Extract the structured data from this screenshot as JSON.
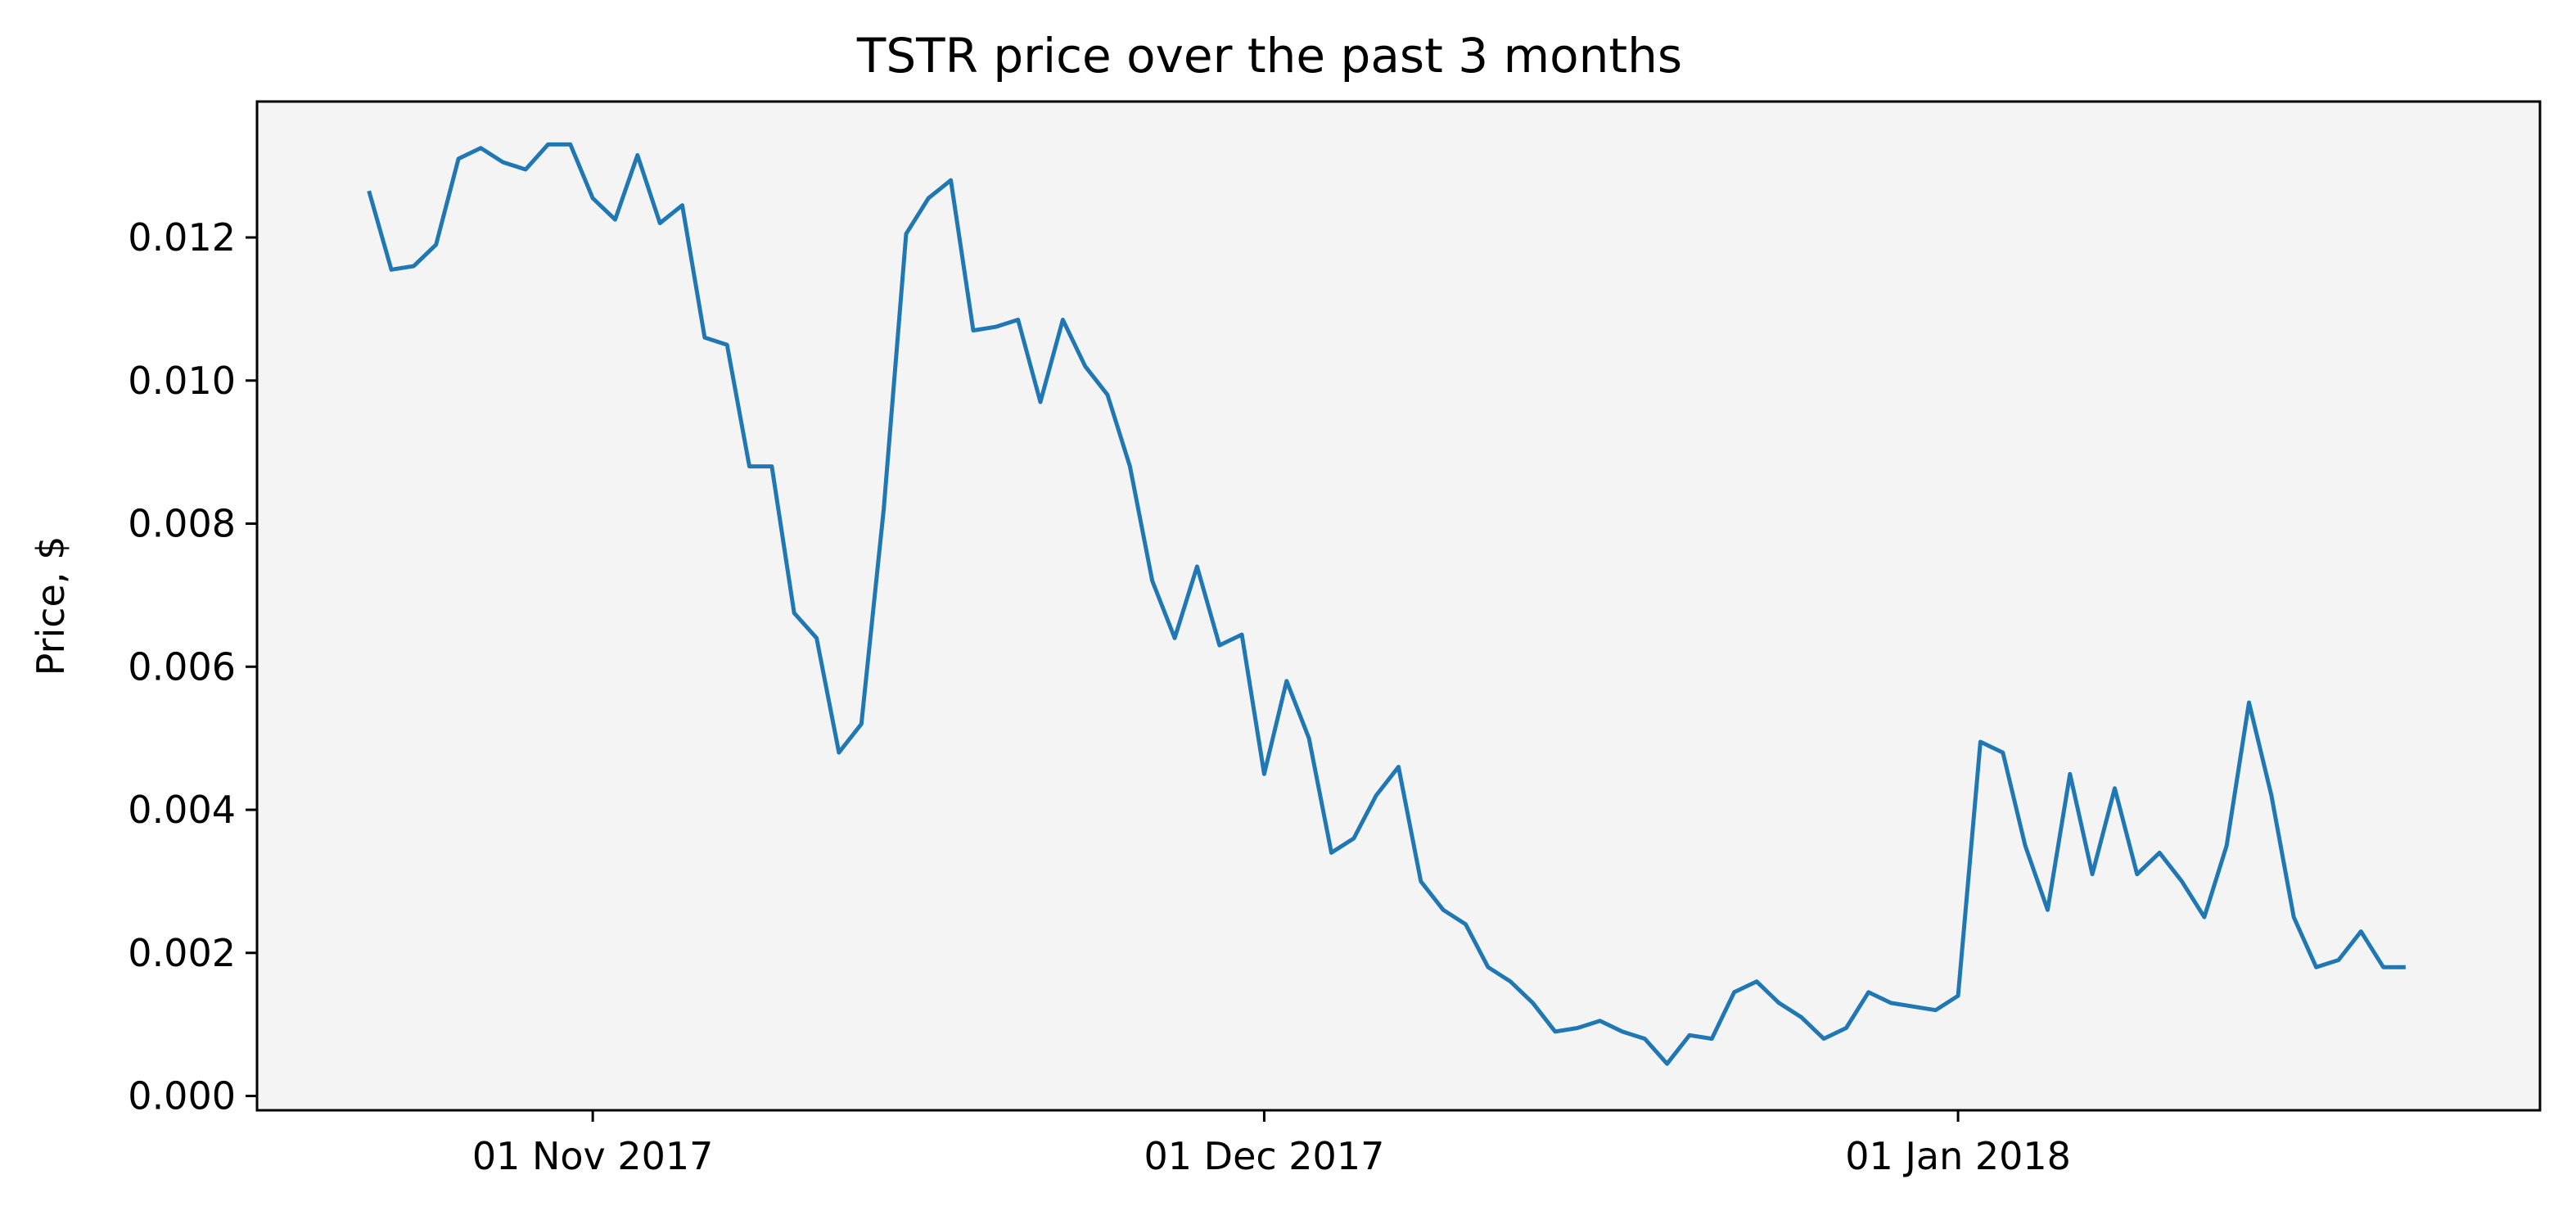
{
  "chart_data": {
    "type": "line",
    "title": "TSTR price over the past 3 months",
    "xlabel": "",
    "ylabel": "Price, $",
    "ylim": [
      -0.0002,
      0.0139
    ],
    "xlim": [
      "2017-10-17",
      "2018-01-27"
    ],
    "grid": false,
    "background": "#f4f4f4",
    "line_color": "#1f77b4",
    "x_ticks": [
      {
        "date": "2017-11-01",
        "label": "01 Nov 2017"
      },
      {
        "date": "2017-12-01",
        "label": "01 Dec 2017"
      },
      {
        "date": "2018-01-01",
        "label": "01 Jan 2018"
      }
    ],
    "y_ticks": [
      {
        "value": 0.0,
        "label": "0.000"
      },
      {
        "value": 0.002,
        "label": "0.002"
      },
      {
        "value": 0.004,
        "label": "0.004"
      },
      {
        "value": 0.006,
        "label": "0.006"
      },
      {
        "value": 0.008,
        "label": "0.008"
      },
      {
        "value": 0.01,
        "label": "0.010"
      },
      {
        "value": 0.012,
        "label": "0.012"
      }
    ],
    "start_date": "2017-10-22",
    "x": [
      "2017-10-22",
      "2017-10-23",
      "2017-10-24",
      "2017-10-25",
      "2017-10-26",
      "2017-10-27",
      "2017-10-28",
      "2017-10-29",
      "2017-10-30",
      "2017-10-31",
      "2017-11-01",
      "2017-11-02",
      "2017-11-03",
      "2017-11-04",
      "2017-11-05",
      "2017-11-06",
      "2017-11-07",
      "2017-11-08",
      "2017-11-09",
      "2017-11-10",
      "2017-11-11",
      "2017-11-12",
      "2017-11-13",
      "2017-11-14",
      "2017-11-15",
      "2017-11-16",
      "2017-11-17",
      "2017-11-18",
      "2017-11-19",
      "2017-11-20",
      "2017-11-21",
      "2017-11-22",
      "2017-11-23",
      "2017-11-24",
      "2017-11-25",
      "2017-11-26",
      "2017-11-27",
      "2017-11-28",
      "2017-11-29",
      "2017-11-30",
      "2017-12-01",
      "2017-12-02",
      "2017-12-03",
      "2017-12-04",
      "2017-12-05",
      "2017-12-06",
      "2017-12-07",
      "2017-12-08",
      "2017-12-09",
      "2017-12-10",
      "2017-12-11",
      "2017-12-12",
      "2017-12-13",
      "2017-12-14",
      "2017-12-15",
      "2017-12-16",
      "2017-12-17",
      "2017-12-18",
      "2017-12-19",
      "2017-12-20",
      "2017-12-21",
      "2017-12-22",
      "2017-12-23",
      "2017-12-24",
      "2017-12-25",
      "2017-12-26",
      "2017-12-27",
      "2017-12-28",
      "2017-12-29",
      "2017-12-30",
      "2017-12-31",
      "2018-01-01",
      "2018-01-02",
      "2018-01-03",
      "2018-01-04",
      "2018-01-05",
      "2018-01-06",
      "2018-01-07",
      "2018-01-08",
      "2018-01-09",
      "2018-01-10",
      "2018-01-11",
      "2018-01-12",
      "2018-01-13",
      "2018-01-14",
      "2018-01-15",
      "2018-01-16",
      "2018-01-17",
      "2018-01-18",
      "2018-01-19",
      "2018-01-20",
      "2018-01-21"
    ],
    "values": [
      0.01265,
      0.01155,
      0.0116,
      0.0119,
      0.0131,
      0.01325,
      0.01305,
      0.01295,
      0.0133,
      0.0133,
      0.01255,
      0.01225,
      0.01315,
      0.0122,
      0.01245,
      0.0106,
      0.0105,
      0.0088,
      0.0088,
      0.00675,
      0.0064,
      0.0048,
      0.0052,
      0.0082,
      0.01205,
      0.01255,
      0.0128,
      0.0107,
      0.01075,
      0.01085,
      0.0097,
      0.01085,
      0.0102,
      0.0098,
      0.0088,
      0.0072,
      0.0064,
      0.0074,
      0.0063,
      0.00645,
      0.0045,
      0.0058,
      0.005,
      0.0034,
      0.0036,
      0.0042,
      0.0046,
      0.003,
      0.0026,
      0.0024,
      0.0018,
      0.0016,
      0.0013,
      0.0009,
      0.00095,
      0.00105,
      0.0009,
      0.0008,
      0.00045,
      0.00085,
      0.0008,
      0.00145,
      0.0016,
      0.0013,
      0.0011,
      0.0008,
      0.00095,
      0.00145,
      0.0013,
      0.00125,
      0.0012,
      0.0014,
      0.00495,
      0.0048,
      0.0035,
      0.0026,
      0.0045,
      0.0031,
      0.0043,
      0.0031,
      0.0034,
      0.003,
      0.0025,
      0.0035,
      0.0055,
      0.0042,
      0.0025,
      0.0018,
      0.0019,
      0.0023,
      0.0018,
      0.0018
    ]
  }
}
